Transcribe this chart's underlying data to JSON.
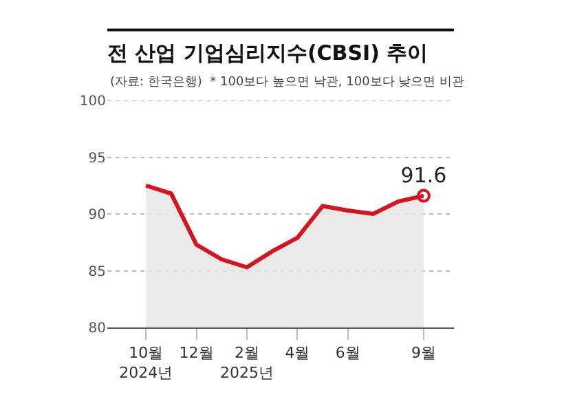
{
  "chart_data": {
    "type": "area",
    "title": "전 산업 기업심리지수(CBSI) 추이",
    "subtitle": "(자료: 한국은행)  * 100보다 높으면 낙관, 100보다 낮으면 비관",
    "categories": [
      "10월\n2024년",
      null,
      "12월",
      null,
      "2월\n2025년",
      null,
      "4월",
      null,
      "6월",
      null,
      null,
      "9월"
    ],
    "series": [
      {
        "color": "#d7141e",
        "values": [
          92.5,
          91.8,
          87.3,
          86.0,
          85.3,
          86.7,
          87.9,
          90.7,
          90.3,
          90.0,
          91.1,
          91.6
        ],
        "value_labels": [
          null,
          null,
          null,
          null,
          null,
          null,
          null,
          null,
          null,
          null,
          null,
          "91.6"
        ]
      }
    ],
    "ylim": [
      80,
      100
    ],
    "yticks": [
      80,
      85,
      90,
      95,
      100
    ],
    "grid": "y"
  }
}
